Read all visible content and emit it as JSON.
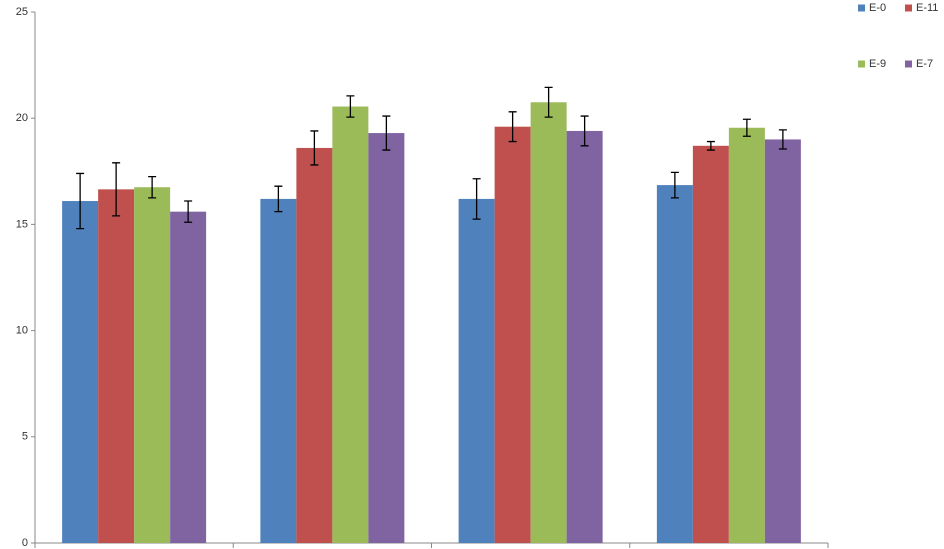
{
  "chart_data": {
    "type": "bar",
    "categories": [
      null,
      null,
      null,
      null
    ],
    "series": [
      {
        "name": "E-0",
        "color": "#4f81bd",
        "values": [
          16.1,
          16.2,
          16.2,
          16.85
        ],
        "errors": [
          1.3,
          0.6,
          0.95,
          0.6
        ]
      },
      {
        "name": "E-11",
        "color": "#c0504d",
        "values": [
          16.65,
          18.6,
          19.6,
          18.7
        ],
        "errors": [
          1.25,
          0.8,
          0.7,
          0.2
        ]
      },
      {
        "name": "E-9",
        "color": "#9bbb59",
        "values": [
          16.75,
          20.55,
          20.75,
          19.55
        ],
        "errors": [
          0.5,
          0.5,
          0.7,
          0.4
        ]
      },
      {
        "name": "E-7",
        "color": "#8064a2",
        "values": [
          15.6,
          19.3,
          19.4,
          19.0
        ],
        "errors": [
          0.5,
          0.8,
          0.7,
          0.45
        ]
      }
    ],
    "ylim": [
      0,
      25
    ],
    "yticks": [
      0,
      5,
      10,
      15,
      20,
      25
    ],
    "grid": false,
    "legend": "top-right"
  }
}
